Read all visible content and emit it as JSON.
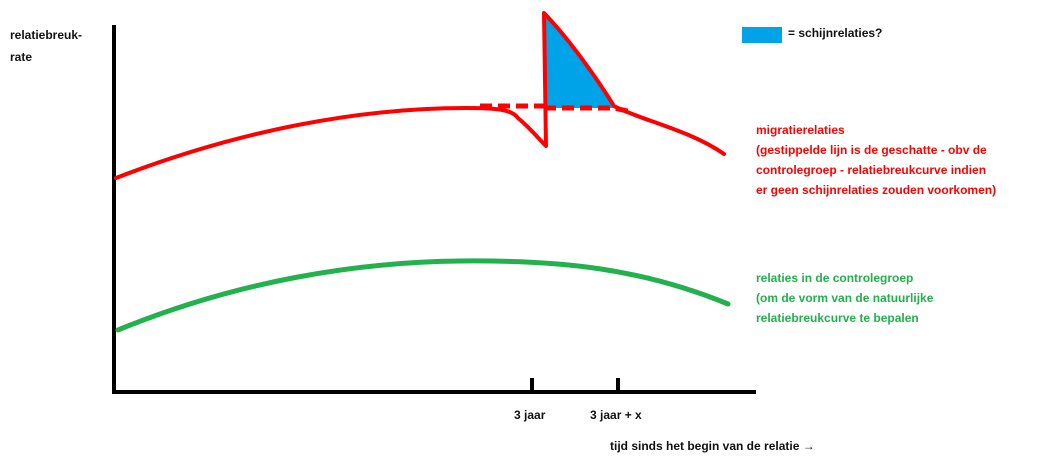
{
  "colors": {
    "axis": "#000000",
    "migration": "#ff0000",
    "control": "#22b14c",
    "fill": "#00a2e8"
  },
  "axes": {
    "y_label_line1": "relatiebreuk-",
    "y_label_line2": "rate",
    "x_label": "tijd sinds het begin van de relatie →",
    "tick1": "3 jaar",
    "tick2": "3 jaar + x"
  },
  "legend": {
    "label": "= schijnrelaties?"
  },
  "migration": {
    "line1": "migratierelaties",
    "line2": "(gestippelde lijn is de geschatte - obv de",
    "line3": "controlegroep - relatiebreukcurve indien",
    "line4": "er geen schijnrelaties zouden voorkomen)"
  },
  "control": {
    "line1": "relaties in de controlegroep",
    "line2": "(om de vorm van de natuurlijke",
    "line3": "relatiebreukcurve te bepalen"
  }
}
